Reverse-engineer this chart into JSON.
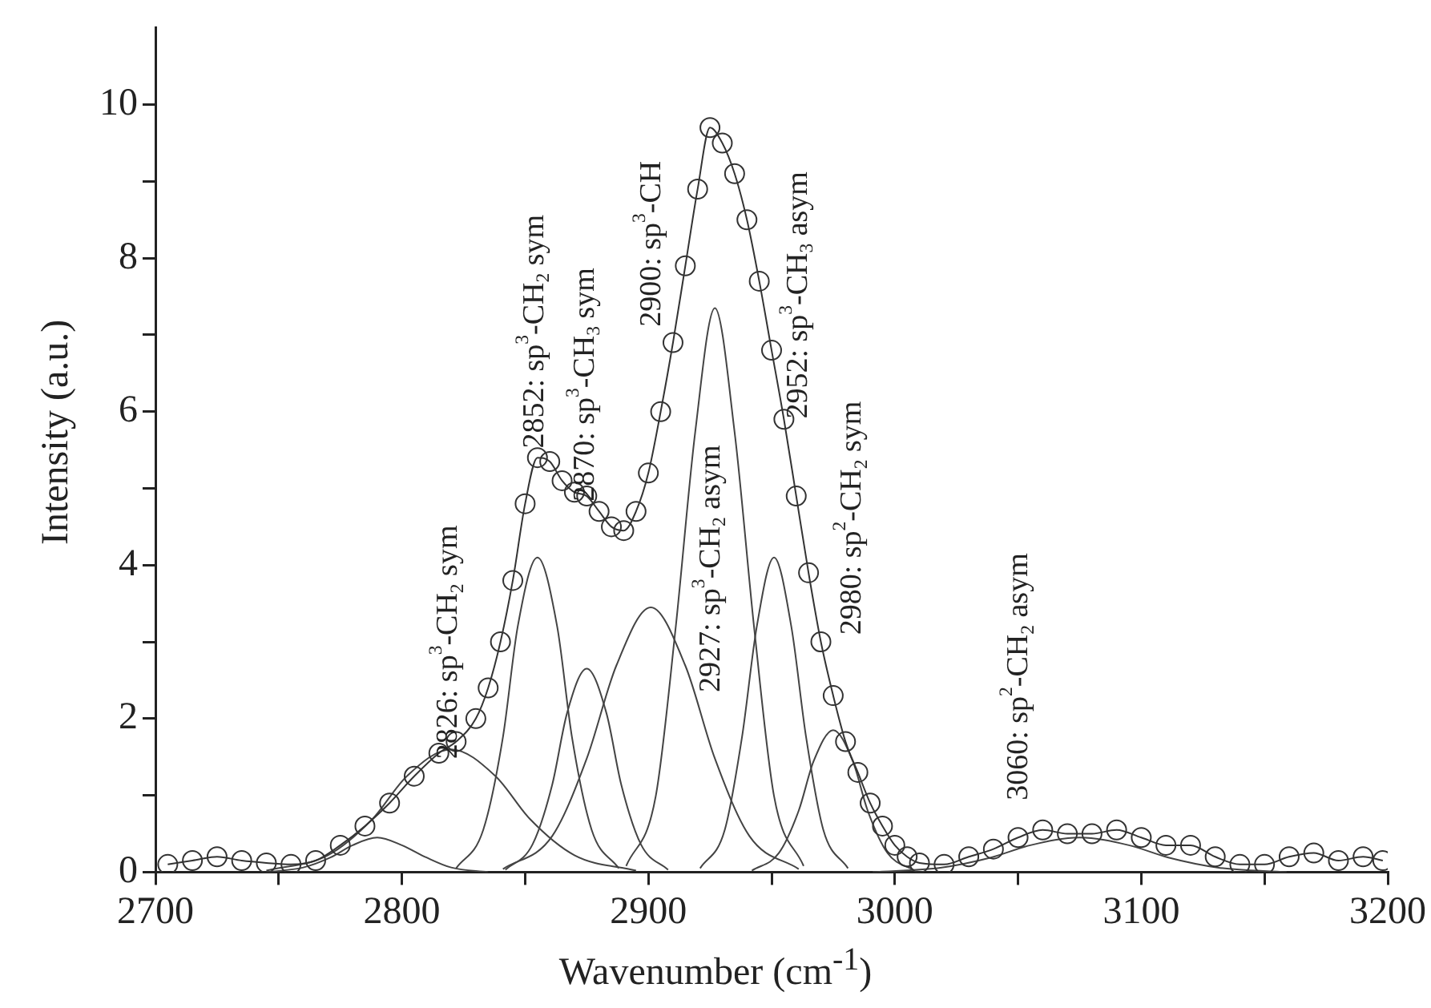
{
  "chart_data": {
    "type": "line",
    "xlabel": "Wavenumber (cm$^{-1}$)",
    "ylabel": "Intensity (a.u.)",
    "xlim": [
      2700,
      3200
    ],
    "xticks": [
      2700,
      {
        "value": 2750,
        "label": null
      },
      2800,
      {
        "value": 2850,
        "label": null
      },
      2900,
      {
        "value": 2950,
        "label": null
      },
      3000,
      {
        "value": 3050,
        "label": null
      },
      3100,
      {
        "value": 3150,
        "label": null
      },
      3200
    ],
    "ylim": [
      0,
      11
    ],
    "yticks": [
      0,
      {
        "value": 1,
        "label": null
      },
      2,
      {
        "value": 3,
        "label": null
      },
      4,
      {
        "value": 5,
        "label": null
      },
      6,
      {
        "value": 7,
        "label": null
      },
      8,
      {
        "value": 9,
        "label": null
      },
      10
    ],
    "grid": false,
    "legend": false,
    "series": [
      {
        "marker": "circle",
        "color": "#333333",
        "x": [
          2705,
          2715,
          2725,
          2735,
          2745,
          2755,
          2765,
          2775,
          2785,
          2795,
          2805,
          2815,
          2822,
          2830,
          2835,
          2840,
          2845,
          2850,
          2855,
          2860,
          2865,
          2870,
          2875,
          2880,
          2885,
          2890,
          2895,
          2900,
          2905,
          2910,
          2915,
          2920,
          2925,
          2930,
          2935,
          2940,
          2945,
          2950,
          2955,
          2960,
          2965,
          2970,
          2975,
          2980,
          2985,
          2990,
          2995,
          3000,
          3005,
          3010,
          3020,
          3030,
          3040,
          3050,
          3060,
          3070,
          3080,
          3090,
          3100,
          3110,
          3120,
          3130,
          3140,
          3150,
          3160,
          3170,
          3180,
          3190,
          3198
        ],
        "values": [
          0.1,
          0.15,
          0.2,
          0.15,
          0.12,
          0.1,
          0.15,
          0.35,
          0.6,
          0.9,
          1.25,
          1.55,
          1.7,
          2.0,
          2.4,
          3.0,
          3.8,
          4.8,
          5.4,
          5.35,
          5.1,
          4.95,
          4.9,
          4.7,
          4.5,
          4.45,
          4.7,
          5.2,
          6.0,
          6.9,
          7.9,
          8.9,
          9.7,
          9.5,
          9.1,
          8.5,
          7.7,
          6.8,
          5.9,
          4.9,
          3.9,
          3.0,
          2.3,
          1.7,
          1.3,
          0.9,
          0.6,
          0.35,
          0.2,
          0.12,
          0.1,
          0.2,
          0.3,
          0.45,
          0.55,
          0.5,
          0.5,
          0.55,
          0.45,
          0.35,
          0.35,
          0.2,
          0.1,
          0.1,
          0.2,
          0.25,
          0.15,
          0.2,
          0.15
        ]
      },
      {
        "type": "line",
        "marker": "none",
        "color": "#444444",
        "x": [
          2745,
          2760,
          2771,
          2780,
          2790,
          2800,
          2810,
          2820,
          2835
        ],
        "values": [
          0,
          0.06,
          0.19,
          0.35,
          0.45,
          0.35,
          0.19,
          0.06,
          0
        ]
      },
      {
        "type": "line",
        "marker": "none",
        "color": "#444444",
        "x": [
          2745,
          2770,
          2788,
          2802,
          2820,
          2838,
          2852,
          2870,
          2895
        ],
        "values": [
          0.02,
          0.22,
          0.69,
          1.25,
          1.6,
          1.25,
          0.69,
          0.22,
          0.02
        ]
      },
      {
        "type": "line",
        "marker": "none",
        "color": "#444444",
        "x": [
          2822,
          2833,
          2841,
          2847,
          2855,
          2863,
          2869,
          2877,
          2888
        ],
        "values": [
          0.05,
          0.55,
          1.76,
          3.2,
          4.1,
          3.2,
          1.76,
          0.55,
          0.05
        ]
      },
      {
        "type": "line",
        "marker": "none",
        "color": "#444444",
        "x": [
          2842,
          2853,
          2861,
          2867,
          2875,
          2883,
          2889,
          2897,
          2908
        ],
        "values": [
          0.03,
          0.36,
          1.14,
          2.07,
          2.65,
          2.07,
          1.14,
          0.36,
          0.03
        ]
      },
      {
        "type": "line",
        "marker": "none",
        "color": "#444444",
        "x": [
          2841,
          2861,
          2875,
          2887,
          2901,
          2915,
          2927,
          2941,
          2961
        ],
        "values": [
          0.04,
          0.47,
          1.48,
          2.69,
          3.45,
          2.69,
          1.48,
          0.47,
          0.04
        ]
      },
      {
        "type": "line",
        "marker": "none",
        "color": "#444444",
        "x": [
          2891,
          2903,
          2911,
          2919,
          2927,
          2935,
          2943,
          2951,
          2963
        ],
        "values": [
          0.08,
          0.99,
          3.16,
          5.73,
          7.35,
          5.73,
          3.16,
          0.99,
          0.08
        ]
      },
      {
        "type": "line",
        "marker": "none",
        "color": "#444444",
        "x": [
          2921,
          2931,
          2938,
          2944,
          2951,
          2958,
          2964,
          2971,
          2981
        ],
        "values": [
          0.05,
          0.55,
          1.76,
          3.2,
          4.1,
          3.2,
          1.76,
          0.55,
          0.05
        ]
      },
      {
        "type": "line",
        "marker": "none",
        "color": "#444444",
        "x": [
          2942,
          2953,
          2961,
          2967,
          2975,
          2983,
          2989,
          2997,
          3008
        ],
        "values": [
          0.02,
          0.25,
          0.8,
          1.44,
          1.85,
          1.44,
          0.8,
          0.25,
          0.02
        ]
      },
      {
        "type": "line",
        "marker": "none",
        "color": "#444444",
        "x": [
          2991,
          3019,
          3039,
          3055,
          3075,
          3095,
          3111,
          3131,
          3159
        ],
        "values": [
          0,
          0.06,
          0.19,
          0.35,
          0.45,
          0.35,
          0.19,
          0.06,
          0
        ]
      }
    ],
    "annotations": [
      "2826: sp$^{3}$-CH$_{2}$ sym",
      "2852: sp$^{3}$-CH$_{2}$ sym",
      "2870: sp$^{3}$-CH$_{3}$ sym",
      "2900: sp$^{3}$-CH",
      "2927: sp$^{3}$-CH$_{2}$ asym",
      "2952: sp$^{3}$-CH$_{3}$ asym",
      "2980: sp$^{2}$-CH$_{2}$ sym",
      "3060: sp$^{2}$-CH$_{2}$ asym"
    ]
  }
}
